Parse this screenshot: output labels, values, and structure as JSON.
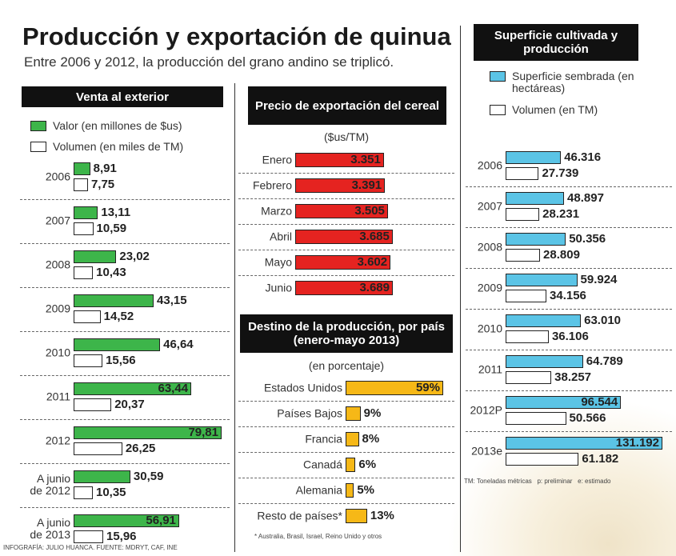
{
  "header": {
    "title": "Producción y exportación de quinua",
    "subtitle": "Entre 2006 y 2012, la producción del grano andino se triplicó."
  },
  "credit": "INFOGRAFÍA: JULIO HUANCA. FUENTE: MDRYT, CAF, INE",
  "chart_data": [
    {
      "type": "bar",
      "title": "Venta al exterior",
      "categories": [
        "2006",
        "2007",
        "2008",
        "2009",
        "2010",
        "2011",
        "2012",
        "A junio de 2012",
        "A junio de 2013"
      ],
      "series": [
        {
          "name": "Valor (en millones de $us)",
          "color": "#3db54a",
          "values": [
            8.91,
            13.11,
            23.02,
            43.15,
            46.64,
            63.44,
            79.81,
            30.59,
            56.91
          ],
          "value_labels": [
            "8,91",
            "13,11",
            "23,02",
            "43,15",
            "46,64",
            "63,44",
            "79,81",
            "30,59",
            "56,91"
          ]
        },
        {
          "name": "Volumen (en miles de TM)",
          "color": "#ffffff",
          "values": [
            7.75,
            10.59,
            10.43,
            14.52,
            15.56,
            20.37,
            26.25,
            10.35,
            15.96
          ],
          "value_labels": [
            "7,75",
            "10,59",
            "10,43",
            "14,52",
            "15,56",
            "20,37",
            "26,25",
            "10,35",
            "15,96"
          ]
        }
      ]
    },
    {
      "type": "bar",
      "title": "Precio de exportación del cereal",
      "subtitle": "($us/TM)",
      "categories": [
        "Enero",
        "Febrero",
        "Marzo",
        "Abril",
        "Mayo",
        "Junio"
      ],
      "values": [
        3351,
        3391,
        3505,
        3685,
        3602,
        3689
      ],
      "value_labels": [
        "3.351",
        "3.391",
        "3.505",
        "3.685",
        "3.602",
        "3.689"
      ],
      "color": "#e52320"
    },
    {
      "type": "bar",
      "title": "Destino de la producción, por país (enero-mayo 2013)",
      "subtitle": "(en porcentaje)",
      "categories": [
        "Estados Unidos",
        "Países Bajos",
        "Francia",
        "Canadá",
        "Alemania",
        "Resto de países*"
      ],
      "values": [
        59,
        9,
        8,
        6,
        5,
        13
      ],
      "value_labels": [
        "59%",
        "9%",
        "8%",
        "6%",
        "5%",
        "13%"
      ],
      "color": "#f6b817",
      "note": "* Australia, Brasil, Israel, Reino Unido y otros"
    },
    {
      "type": "bar",
      "title": "Superficie cultivada y producción",
      "categories": [
        "2006",
        "2007",
        "2008",
        "2009",
        "2010",
        "2011",
        "2012P",
        "2013e"
      ],
      "series": [
        {
          "name": "Superficie sembrada (en hectáreas)",
          "color": "#5bc4e6",
          "values": [
            46316,
            48897,
            50356,
            59924,
            63010,
            64789,
            96544,
            131192
          ],
          "value_labels": [
            "46.316",
            "48.897",
            "50.356",
            "59.924",
            "63.010",
            "64.789",
            "96.544",
            "131.192"
          ]
        },
        {
          "name": "Volumen (en TM)",
          "color": "#ffffff",
          "values": [
            27739,
            28231,
            28809,
            34156,
            36106,
            38257,
            50566,
            61182
          ],
          "value_labels": [
            "27.739",
            "28.231",
            "28.809",
            "34.156",
            "36.106",
            "38.257",
            "50.566",
            "61.182"
          ]
        }
      ],
      "note": "TM: Toneladas métricas   p: preliminar   e: estimado"
    }
  ]
}
